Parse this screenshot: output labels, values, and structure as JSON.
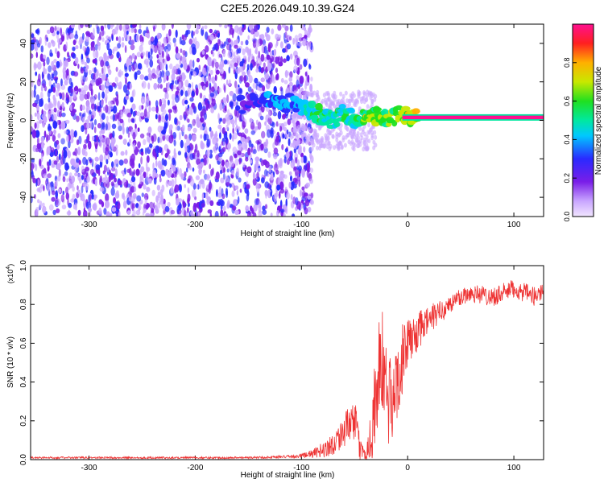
{
  "chart_data": [
    {
      "type": "heatmap",
      "title": "C2E5.2026.049.10.39.G24",
      "xlabel": "Height of straight line (km)",
      "ylabel": "Frequency (Hz)",
      "xlim": [
        -355,
        128
      ],
      "ylim": [
        -50,
        50
      ],
      "xticks": [
        -300,
        -200,
        -100,
        0,
        100
      ],
      "yticks": [
        -40,
        -20,
        0,
        20,
        40
      ],
      "colorbar": {
        "label": "Normalized spectral amplitude",
        "range": [
          0.0,
          1.0
        ],
        "ticks": [
          "0.0",
          "0.2",
          "0.4",
          "0.6",
          "0.8"
        ],
        "tick_values": [
          0.0,
          0.2,
          0.4,
          0.6,
          0.8
        ]
      },
      "signal": {
        "noise_region_x": [
          -355,
          -100
        ],
        "carrier_line": {
          "x_range": [
            -5,
            128
          ],
          "frequency_hz": 1.5,
          "amplitude": 0.95
        },
        "track_points": [
          {
            "x": -160,
            "f": 8,
            "a": 0.18
          },
          {
            "x": -140,
            "f": 9,
            "a": 0.2
          },
          {
            "x": -125,
            "f": 10,
            "a": 0.3
          },
          {
            "x": -110,
            "f": 9,
            "a": 0.3
          },
          {
            "x": -100,
            "f": 7,
            "a": 0.35
          },
          {
            "x": -90,
            "f": 5,
            "a": 0.45
          },
          {
            "x": -80,
            "f": 2,
            "a": 0.5
          },
          {
            "x": -70,
            "f": 0,
            "a": 0.45
          },
          {
            "x": -60,
            "f": 4,
            "a": 0.45
          },
          {
            "x": -50,
            "f": 0,
            "a": 0.4
          },
          {
            "x": -40,
            "f": 2,
            "a": 0.6
          },
          {
            "x": -30,
            "f": 2,
            "a": 0.55
          },
          {
            "x": -20,
            "f": 1.5,
            "a": 0.55
          },
          {
            "x": -5,
            "f": 3,
            "a": 0.6
          },
          {
            "x": 10,
            "f": 1.5,
            "a": 0.7
          }
        ]
      }
    },
    {
      "type": "line",
      "xlabel": "Height of straight line (km)",
      "ylabel": "SNR (10 * v/v)",
      "y_multiplier_label": "(x10",
      "y_multiplier_exp": "4",
      "y_multiplier_close": ")",
      "xlim": [
        -355,
        128
      ],
      "ylim": [
        0,
        1.0
      ],
      "xticks": [
        -300,
        -200,
        -100,
        0,
        100
      ],
      "yticks": [
        0.0,
        0.2,
        0.4,
        0.6,
        0.8,
        1.0
      ],
      "ytick_labels": [
        "0.0",
        "0.2",
        "0.4",
        "0.6",
        "0.8",
        "1.0"
      ],
      "color": "#ee3333",
      "series": [
        {
          "name": "SNR",
          "x": [
            -355,
            -300,
            -250,
            -200,
            -150,
            -110,
            -100,
            -90,
            -80,
            -70,
            -60,
            -50,
            -45,
            -40,
            -35,
            -30,
            -25,
            -20,
            -15,
            -10,
            -5,
            0,
            10,
            20,
            30,
            40,
            50,
            60,
            70,
            80,
            90,
            100,
            110,
            120,
            128
          ],
          "y": [
            0.01,
            0.01,
            0.01,
            0.01,
            0.01,
            0.015,
            0.02,
            0.03,
            0.05,
            0.08,
            0.15,
            0.2,
            0.06,
            0.02,
            0.1,
            0.35,
            0.5,
            0.38,
            0.25,
            0.42,
            0.52,
            0.6,
            0.66,
            0.72,
            0.76,
            0.8,
            0.84,
            0.86,
            0.85,
            0.84,
            0.86,
            0.88,
            0.86,
            0.84,
            0.88
          ],
          "noise_amplitude": [
            0.005,
            0.005,
            0.005,
            0.005,
            0.005,
            0.008,
            0.012,
            0.02,
            0.04,
            0.06,
            0.08,
            0.12,
            0.06,
            0.03,
            0.15,
            0.3,
            0.3,
            0.3,
            0.22,
            0.22,
            0.18,
            0.12,
            0.1,
            0.08,
            0.06,
            0.05,
            0.05,
            0.05,
            0.05,
            0.05,
            0.05,
            0.05,
            0.05,
            0.05,
            0.05
          ]
        }
      ]
    }
  ]
}
